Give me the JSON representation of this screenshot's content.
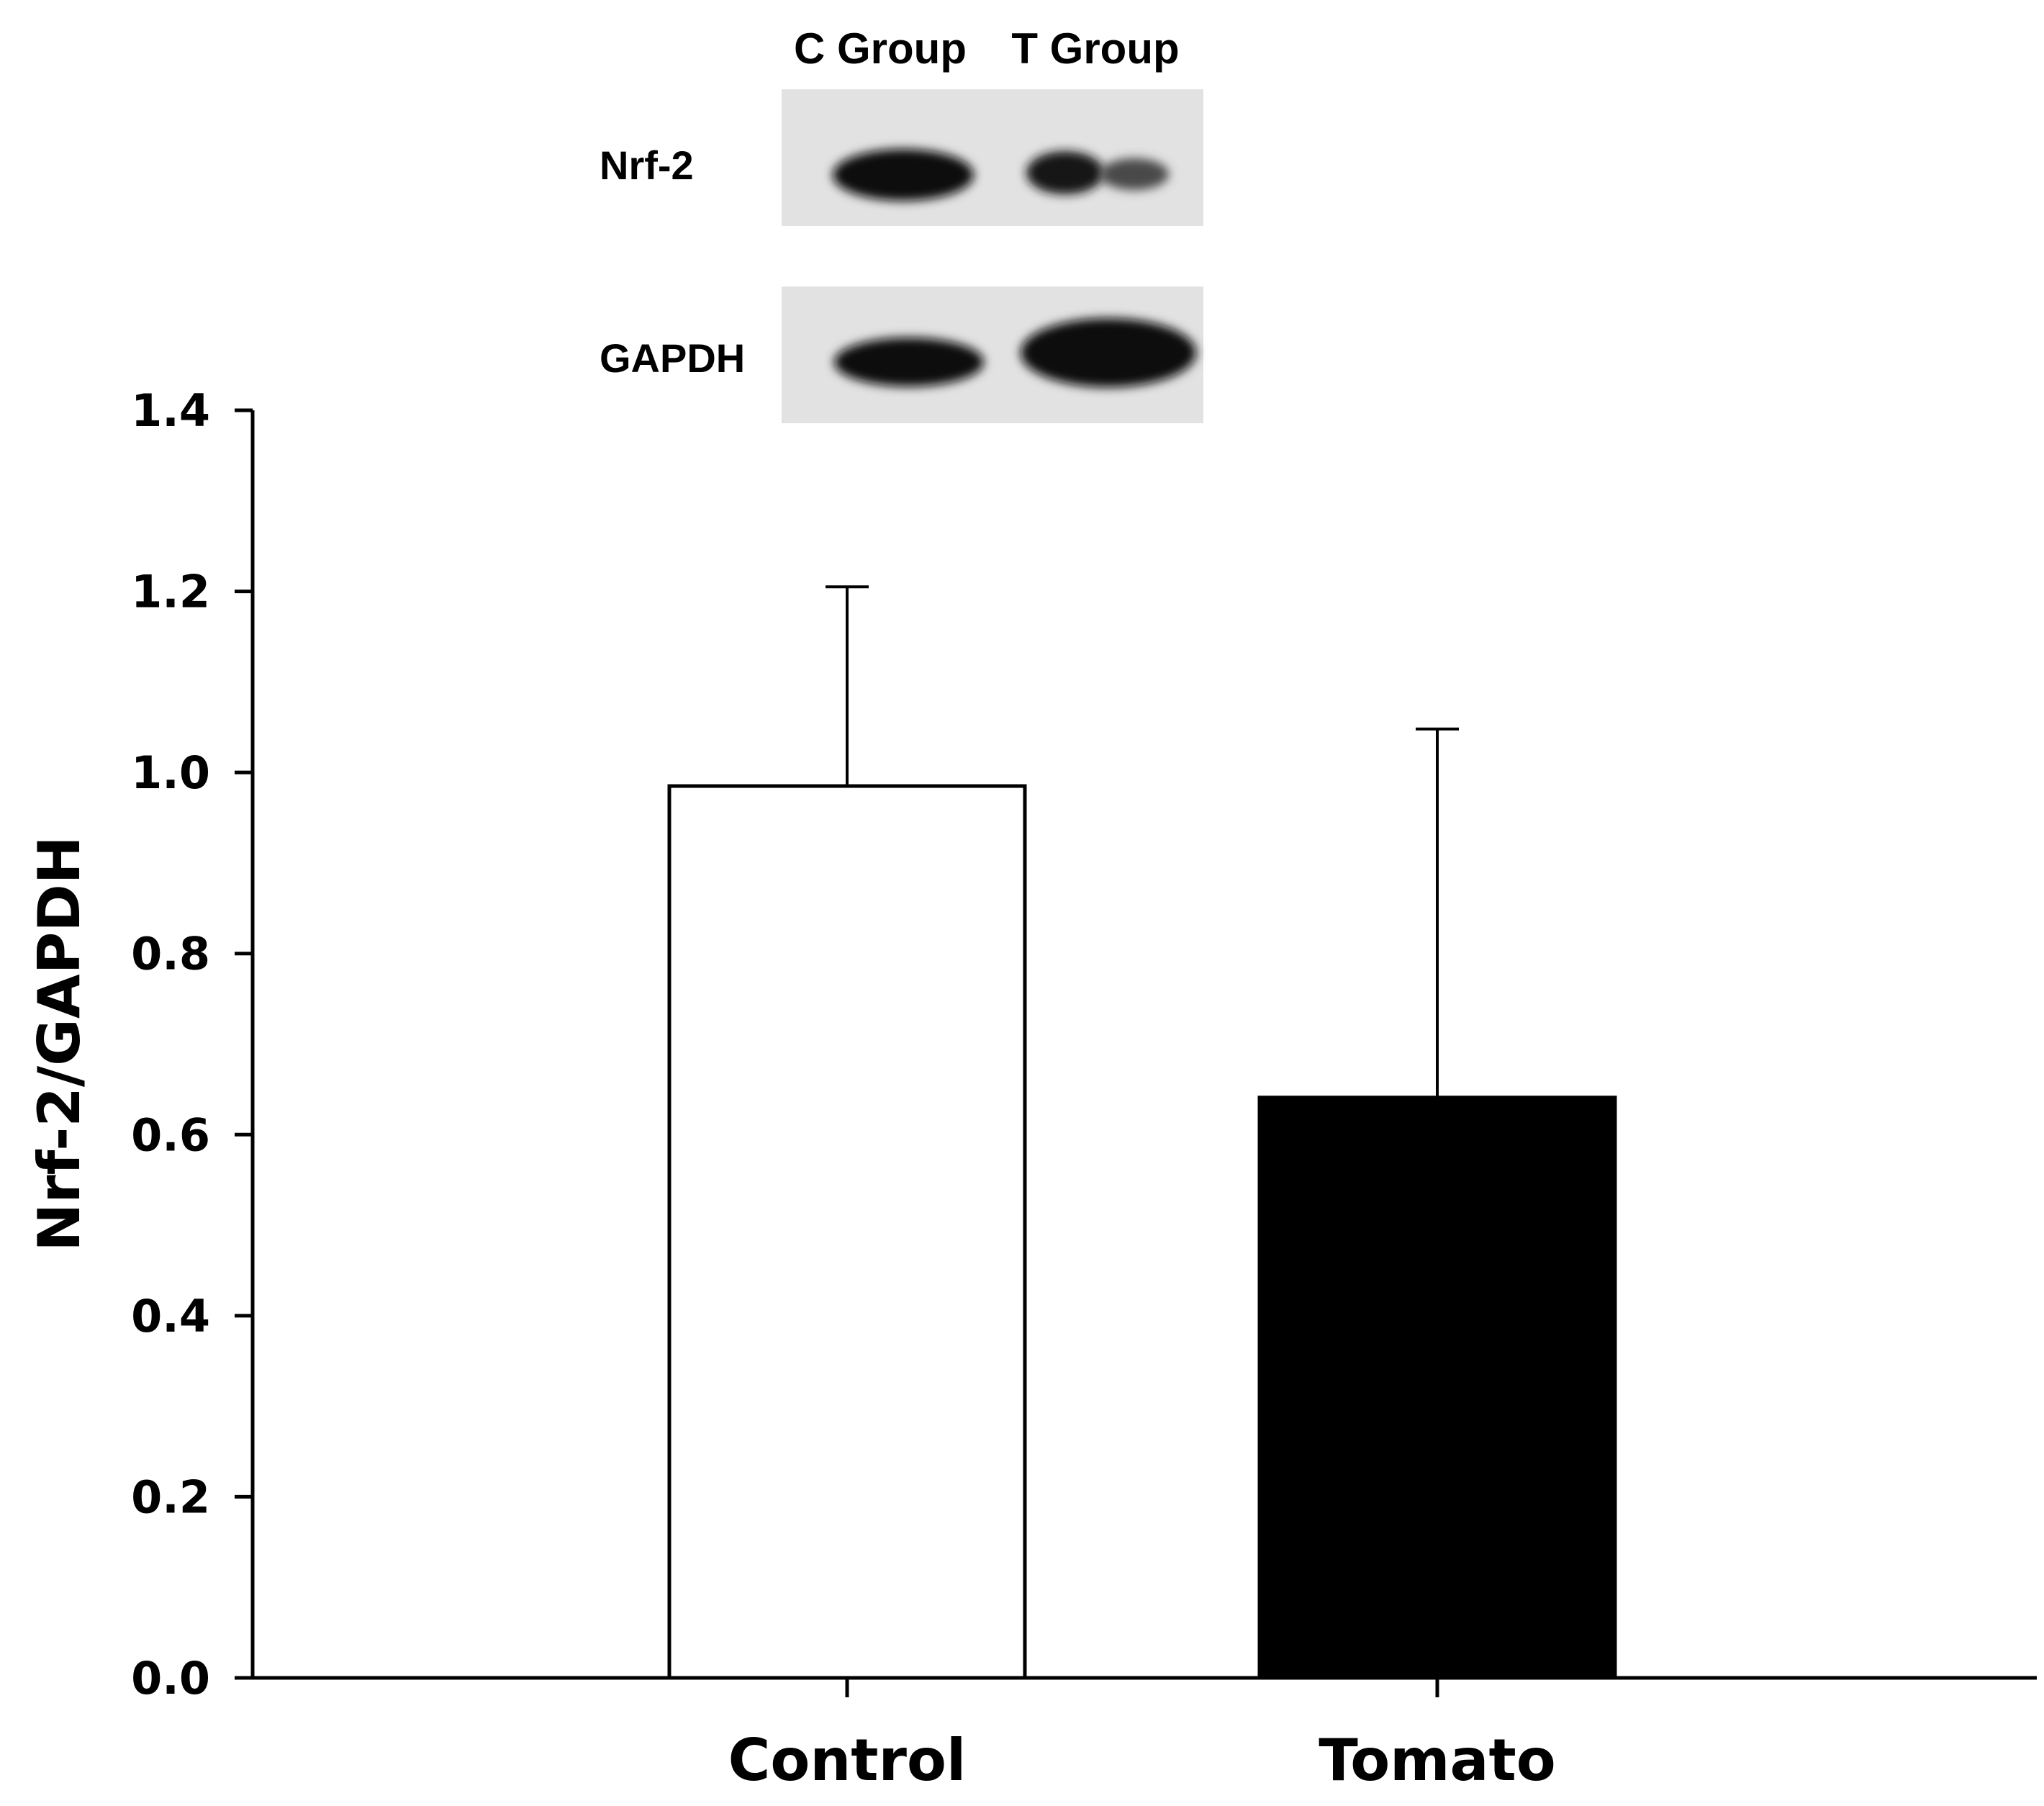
{
  "chart_data": {
    "type": "bar",
    "categories": [
      "Control",
      "Tomato"
    ],
    "values": [
      0.985,
      0.641
    ],
    "error_upper": [
      1.205,
      1.048
    ],
    "ylabel": "Nrf-2/GAPDH",
    "xlabel": "",
    "ylim": [
      0,
      1.4
    ],
    "yticks": [
      "0.0",
      "0.2",
      "0.4",
      "0.6",
      "0.8",
      "1.0",
      "1.2",
      "1.4"
    ],
    "bar_colors": [
      "#ffffff",
      "#000000"
    ],
    "grid": false
  },
  "blot": {
    "lane_labels": [
      "C Group",
      "T Group"
    ],
    "row_labels": [
      "Nrf-2",
      "GAPDH"
    ],
    "background": "#e2e2e2",
    "band_color": "#111111"
  }
}
